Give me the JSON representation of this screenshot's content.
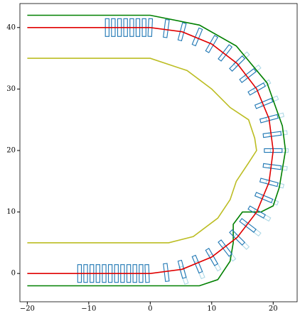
{
  "chart_data": {
    "type": "line",
    "xlim": [
      -21.2,
      23.9
    ],
    "ylim": [
      -4.6,
      43.9
    ],
    "xticks": [
      {
        "value": -20,
        "label": "−20"
      },
      {
        "value": -10,
        "label": "−10"
      },
      0,
      10,
      20
    ],
    "yticks": [
      0,
      10,
      20,
      30,
      40
    ],
    "series": [
      {
        "color": "#bcbd22",
        "x": [
          -20,
          0,
          6,
          10,
          13,
          16,
          17,
          17.3,
          16,
          14,
          13,
          11,
          7,
          3,
          -20
        ],
        "values": [
          35,
          35,
          33,
          30,
          27,
          25,
          22,
          20,
          18,
          15,
          12,
          9,
          6,
          5,
          5
        ]
      },
      {
        "color": "#008000",
        "x": [
          -20,
          0,
          8,
          14,
          19,
          21.5,
          22,
          21,
          20,
          18,
          15,
          13.5,
          13.5,
          13,
          11,
          8,
          -20
        ],
        "values": [
          42,
          42,
          40.4,
          37,
          31,
          24,
          20,
          14,
          11,
          10,
          10,
          8,
          5,
          2,
          -1,
          -2,
          -2
        ]
      },
      {
        "color": "#e00000",
        "x": [
          -20,
          0,
          5.18,
          10,
          14.14,
          17.32,
          19.32,
          20,
          19.32,
          17.32,
          14.14,
          10,
          5.18,
          0,
          -20
        ],
        "values": [
          0,
          0,
          0.68,
          2.68,
          5.86,
          10,
          14.82,
          20,
          25.18,
          30,
          34.14,
          37.32,
          39.32,
          40,
          40
        ]
      }
    ],
    "footprints": [
      {
        "color": "#add8e6",
        "x": [
          5.44,
          8.04,
          10.5,
          12.78,
          14.85,
          16.66,
          18.19,
          19.4,
          20.28,
          20.82,
          21,
          20.82,
          20.28,
          19.4,
          18.19,
          16.66,
          14.85
        ],
        "values": [
          -0.28,
          0.6,
          1.81,
          3.34,
          5.15,
          7.22,
          9.5,
          11.96,
          14.56,
          17.26,
          20,
          22.74,
          25.44,
          28.04,
          30.5,
          32.78,
          34.85
        ]
      },
      {
        "color": "#1f77b4",
        "x": [
          -11.5,
          -10.5,
          -9.5,
          -8.5,
          -7.5,
          -6.5,
          -5.5,
          -4.5,
          -3.5,
          -2.5,
          -1.5,
          -0.5,
          2.61,
          5.18,
          7.65,
          10,
          12.18,
          14.14,
          15.87,
          17.32,
          18.48,
          19.32,
          19.83,
          20,
          19.83,
          19.32,
          18.48,
          17.32,
          15.87,
          14.14,
          12.18,
          10,
          7.65,
          5.18,
          2.61,
          0,
          -1,
          -2,
          -3,
          -4,
          -5,
          -6,
          -7
        ],
        "values": [
          0,
          0,
          0,
          0,
          0,
          0,
          0,
          0,
          0,
          0,
          0,
          0,
          0.17,
          0.68,
          1.52,
          2.68,
          4.13,
          5.86,
          7.82,
          10,
          12.35,
          14.82,
          17.39,
          20,
          22.61,
          25.18,
          27.65,
          30,
          32.18,
          34.14,
          35.87,
          37.32,
          38.48,
          39.32,
          39.83,
          40,
          40,
          40,
          40,
          40,
          40,
          40,
          40
        ]
      }
    ]
  }
}
